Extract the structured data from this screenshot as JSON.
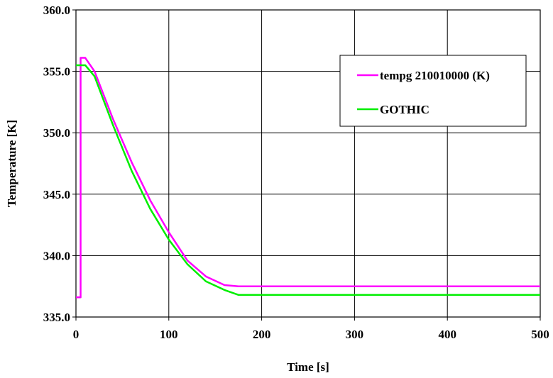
{
  "chart_data": {
    "type": "line",
    "title": "",
    "xlabel": "Time [s]",
    "ylabel": "Temperature [K]",
    "xlim": [
      0,
      500
    ],
    "ylim": [
      335.0,
      360.0
    ],
    "xticks": [
      0,
      100,
      200,
      300,
      400,
      500
    ],
    "yticks": [
      335.0,
      340.0,
      345.0,
      350.0,
      355.0,
      360.0
    ],
    "xtick_labels": [
      "0",
      "100",
      "200",
      "300",
      "400",
      "500"
    ],
    "ytick_labels": [
      "335.0",
      "340.0",
      "345.0",
      "350.0",
      "355.0",
      "360.0"
    ],
    "grid": true,
    "legend_position": "top-right",
    "series": [
      {
        "name": "tempg 210010000 (K)",
        "color": "#ff00ff",
        "x": [
          0,
          5,
          5,
          7,
          10,
          20,
          40,
          60,
          80,
          100,
          120,
          140,
          160,
          175,
          180,
          200,
          300,
          400,
          500
        ],
        "y": [
          336.6,
          336.6,
          356.1,
          356.1,
          356.1,
          355.0,
          351.1,
          347.6,
          344.5,
          341.9,
          339.6,
          338.3,
          337.6,
          337.5,
          337.5,
          337.5,
          337.5,
          337.5,
          337.5
        ]
      },
      {
        "name": "GOTHIC",
        "color": "#00ee00",
        "x": [
          0,
          10,
          20,
          40,
          60,
          80,
          100,
          120,
          140,
          160,
          175,
          180,
          200,
          300,
          400,
          500
        ],
        "y": [
          355.5,
          355.5,
          354.6,
          350.6,
          346.9,
          343.8,
          341.3,
          339.3,
          337.9,
          337.2,
          336.8,
          336.8,
          336.8,
          336.8,
          336.8,
          336.8
        ]
      }
    ]
  }
}
